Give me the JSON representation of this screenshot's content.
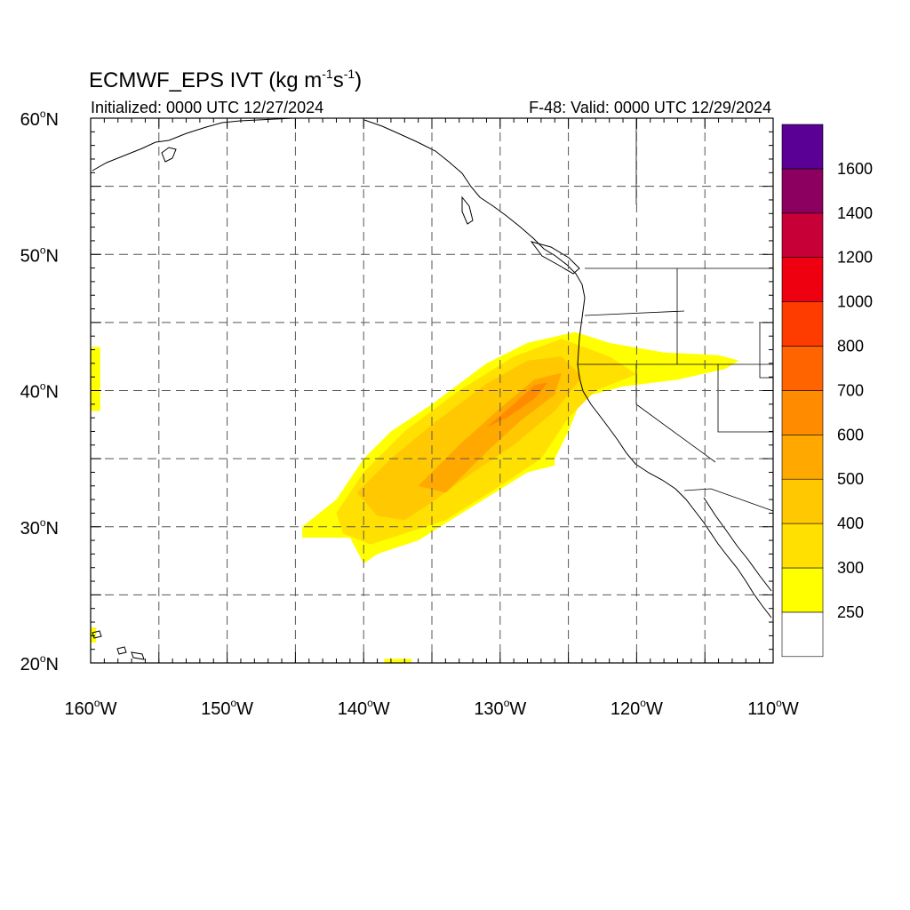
{
  "title": {
    "main": "ECMWF_EPS IVT (kg m",
    "sup1": "-1",
    "mid": "s",
    "sup2": "-1",
    "end": ")"
  },
  "initialized": "Initialized: 0000 UTC 12/27/2024",
  "valid": "F-48: Valid: 0000 UTC 12/29/2024",
  "lon_ticks": [
    {
      "deg": "160",
      "hemi": "W",
      "lon": -160
    },
    {
      "deg": "150",
      "hemi": "W",
      "lon": -150
    },
    {
      "deg": "140",
      "hemi": "W",
      "lon": -140
    },
    {
      "deg": "130",
      "hemi": "W",
      "lon": -130
    },
    {
      "deg": "120",
      "hemi": "W",
      "lon": -120
    },
    {
      "deg": "110",
      "hemi": "W",
      "lon": -110
    }
  ],
  "lat_ticks": [
    {
      "deg": "60",
      "hemi": "N",
      "lat": 60
    },
    {
      "deg": "50",
      "hemi": "N",
      "lat": 50
    },
    {
      "deg": "40",
      "hemi": "N",
      "lat": 40
    },
    {
      "deg": "30",
      "hemi": "N",
      "lat": 30
    },
    {
      "deg": "20",
      "hemi": "N",
      "lat": 20
    }
  ],
  "map_extent": {
    "lon_min": -160,
    "lon_max": -110,
    "lat_min": 20,
    "lat_max": 60
  },
  "colorbar": {
    "levels": [
      250,
      300,
      400,
      500,
      600,
      700,
      800,
      1000,
      1200,
      1400,
      1600
    ],
    "labels": [
      "250",
      "300",
      "400",
      "500",
      "600",
      "700",
      "800",
      "1000",
      "1200",
      "1400",
      "1600"
    ],
    "colors": [
      "#ffffff",
      "#ffff00",
      "#ffe000",
      "#ffc800",
      "#ffa800",
      "#ff8c00",
      "#ff6400",
      "#ff3c00",
      "#ee0010",
      "#c80038",
      "#8c0060",
      "#5a0094"
    ]
  },
  "ivt_band": {
    "description_units": "kg m-1 s-1",
    "core_max_level": 700,
    "outer_level": 250
  }
}
